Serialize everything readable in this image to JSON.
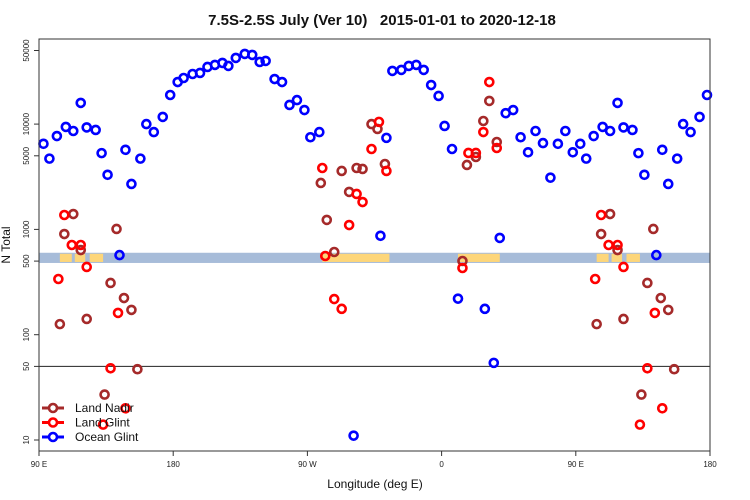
{
  "chart_data": {
    "type": "scatter",
    "title": "7.5S-2.5S July (Ver 10)   2015-01-01 to 2020-12-18",
    "xlabel": "Longitude (deg E)",
    "ylabel": "N Total",
    "yscale": "log",
    "ylim": [
      8.5,
      75000
    ],
    "xlim_axis_deg": [
      90,
      540
    ],
    "x_ticks": [
      {
        "value": 90,
        "label": "90 E"
      },
      {
        "value": 180,
        "label": "180"
      },
      {
        "value": 270,
        "label": "90 W"
      },
      {
        "value": 360,
        "label": "0"
      },
      {
        "value": 450,
        "label": "90 E"
      },
      {
        "value": 540,
        "label": "180"
      }
    ],
    "y_ticks": [
      {
        "value": 10,
        "label": "10"
      },
      {
        "value": 50,
        "label": "50"
      },
      {
        "value": 100,
        "label": "100"
      },
      {
        "value": 500,
        "label": "500"
      },
      {
        "value": 1000,
        "label": "1000"
      },
      {
        "value": 5000,
        "label": "5000"
      },
      {
        "value": 10000,
        "label": "10000"
      },
      {
        "value": 50000,
        "label": "50000"
      }
    ],
    "reference_line": 50,
    "land_band": {
      "ocean_color": "#a7bcd9",
      "land_color": "#fdd67a",
      "land_segments_lon": [
        [
          104,
          112
        ],
        [
          114,
          121
        ],
        [
          124,
          133
        ],
        [
          -80,
          -35
        ],
        [
          11,
          39
        ]
      ]
    },
    "legend_position": "bottom-left",
    "series": [
      {
        "name": "Land Nadir",
        "color": "#a52a2a",
        "points": [
          [
            104,
            126
          ],
          [
            107,
            904
          ],
          [
            113,
            1400
          ],
          [
            118,
            637
          ],
          [
            122,
            141
          ],
          [
            134,
            27
          ],
          [
            138,
            310
          ],
          [
            142,
            1010
          ],
          [
            147,
            223
          ],
          [
            152,
            172
          ],
          [
            156,
            47
          ],
          [
            -81,
            2760
          ],
          [
            -77,
            1230
          ],
          [
            -72,
            610
          ],
          [
            -67,
            3590
          ],
          [
            -62,
            2270
          ],
          [
            -57,
            3830
          ],
          [
            -53,
            3750
          ],
          [
            -47,
            10000
          ],
          [
            -43,
            8990
          ],
          [
            -38,
            4180
          ],
          [
            14,
            501
          ],
          [
            17,
            4090
          ],
          [
            23,
            4870
          ],
          [
            28,
            10700
          ],
          [
            32,
            16600
          ],
          [
            37,
            6760
          ]
        ]
      },
      {
        "name": "Land Glint",
        "color": "#ff0000",
        "points": [
          [
            103,
            338
          ],
          [
            107,
            1370
          ],
          [
            112,
            711
          ],
          [
            118,
            711
          ],
          [
            122,
            440
          ],
          [
            133,
            14
          ],
          [
            138,
            48
          ],
          [
            143,
            161
          ],
          [
            148,
            20
          ],
          [
            -80,
            3830
          ],
          [
            -78,
            559
          ],
          [
            -72,
            218
          ],
          [
            -67,
            176
          ],
          [
            -62,
            1100
          ],
          [
            -57,
            2170
          ],
          [
            -53,
            1820
          ],
          [
            -47,
            5800
          ],
          [
            -42,
            10500
          ],
          [
            -37,
            3590
          ],
          [
            14,
            430
          ],
          [
            18,
            5320
          ],
          [
            23,
            5320
          ],
          [
            28,
            8410
          ],
          [
            32,
            25100
          ],
          [
            37,
            5930
          ]
        ]
      },
      {
        "name": "Ocean Glint",
        "color": "#0000ff",
        "points": [
          [
            93,
            6500
          ],
          [
            97,
            4700
          ],
          [
            102,
            7700
          ],
          [
            108,
            9400
          ],
          [
            113,
            8600
          ],
          [
            118,
            15900
          ],
          [
            122,
            9300
          ],
          [
            128,
            8800
          ],
          [
            132,
            5300
          ],
          [
            136,
            3300
          ],
          [
            144,
            570
          ],
          [
            148,
            5700
          ],
          [
            152,
            2700
          ],
          [
            158,
            4700
          ],
          [
            162,
            10000
          ],
          [
            167,
            8400
          ],
          [
            173,
            11700
          ],
          [
            178,
            18900
          ],
          [
            -177,
            25100
          ],
          [
            -173,
            27400
          ],
          [
            -167,
            29900
          ],
          [
            -162,
            30600
          ],
          [
            -157,
            34900
          ],
          [
            -152,
            36500
          ],
          [
            -147,
            38100
          ],
          [
            -143,
            35700
          ],
          [
            -138,
            42500
          ],
          [
            -132,
            46400
          ],
          [
            -127,
            45400
          ],
          [
            -122,
            38900
          ],
          [
            -118,
            39800
          ],
          [
            -112,
            26800
          ],
          [
            -107,
            25100
          ],
          [
            -102,
            15200
          ],
          [
            -97,
            16900
          ],
          [
            -92,
            13600
          ],
          [
            -88,
            7500
          ],
          [
            -82,
            8400
          ],
          [
            -59,
            11
          ],
          [
            -41,
            870
          ],
          [
            -37,
            7400
          ],
          [
            -33,
            32000
          ],
          [
            -27,
            32700
          ],
          [
            -22,
            35700
          ],
          [
            -17,
            36500
          ],
          [
            -12,
            32700
          ],
          [
            -7,
            23500
          ],
          [
            -2,
            18500
          ],
          [
            2,
            9600
          ],
          [
            7,
            5800
          ],
          [
            11,
            220
          ],
          [
            29,
            176
          ],
          [
            35,
            54
          ],
          [
            39,
            830
          ],
          [
            43,
            12700
          ],
          [
            48,
            13600
          ],
          [
            53,
            7500
          ],
          [
            58,
            5400
          ],
          [
            63,
            8600
          ],
          [
            68,
            6600
          ],
          [
            73,
            3100
          ],
          [
            78,
            6500
          ],
          [
            83,
            8600
          ],
          [
            88,
            5400
          ]
        ]
      }
    ]
  }
}
